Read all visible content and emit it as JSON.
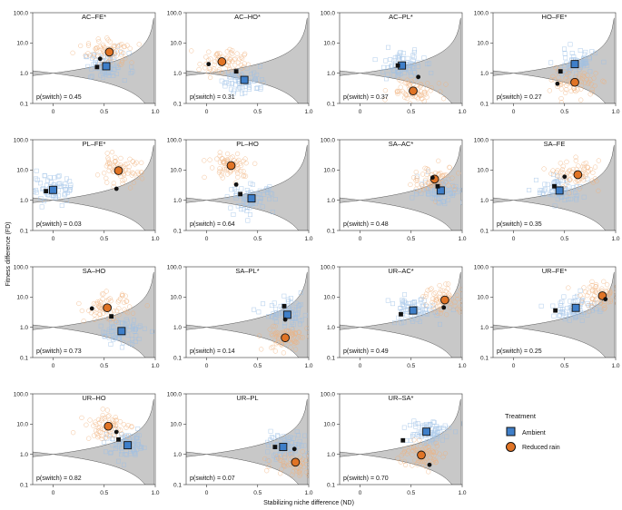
{
  "chart_data": {
    "type": "scatter",
    "xlabel": "Stabilizing niche difference (ND)",
    "ylabel": "Fitness difference (FD)",
    "xlim": [
      -0.2,
      1.0
    ],
    "ylim_log10": [
      -1,
      2
    ],
    "x_ticks": [
      "0",
      "0.5",
      "1.0"
    ],
    "y_ticks": [
      "0.1",
      "1.0",
      "10.0",
      "100.0"
    ],
    "colors": {
      "ambient": "#3f7fc9",
      "reduced": "#e07426",
      "ambient_cloud": "#9bbfe6",
      "reduced_cloud": "#f0b07a",
      "shade": "#c8c8c8"
    },
    "legend": {
      "title": "Treatment",
      "items": [
        "Ambient",
        "Reduced rain"
      ]
    },
    "panels": [
      {
        "title": "AC–FE*",
        "p_switch": "p(switch) = 0.45",
        "ambient": [
          0.52,
          1.7
        ],
        "reduced": [
          0.55,
          5.0
        ],
        "mean": [
          0.46,
          3.0
        ],
        "ambient_ci": [
          0.43,
          1.6
        ]
      },
      {
        "title": "AC–HO*",
        "p_switch": "p(switch) = 0.31",
        "ambient": [
          0.37,
          0.6
        ],
        "reduced": [
          0.15,
          2.4
        ],
        "mean": [
          0.02,
          2.0
        ],
        "ambient_ci": [
          0.29,
          1.15
        ]
      },
      {
        "title": "AC–PL*",
        "p_switch": "p(switch) = 0.37",
        "ambient": [
          0.41,
          1.8
        ],
        "reduced": [
          0.52,
          0.26
        ],
        "mean": [
          0.57,
          0.75
        ],
        "ambient_ci": [
          0.37,
          1.8
        ]
      },
      {
        "title": "HO–FE*",
        "p_switch": "p(switch) = 0.27",
        "ambient": [
          0.6,
          2.0
        ],
        "reduced": [
          0.6,
          0.5
        ],
        "mean": [
          0.43,
          0.45
        ],
        "ambient_ci": [
          0.46,
          1.15
        ]
      },
      {
        "title": "PL–FE*",
        "p_switch": "p(switch) = 0.03",
        "ambient": [
          0.0,
          2.2
        ],
        "reduced": [
          0.64,
          9.5
        ],
        "mean": [
          0.62,
          2.4
        ],
        "ambient_ci": [
          -0.07,
          2.0
        ]
      },
      {
        "title": "PL–HO",
        "p_switch": "p(switch) = 0.64",
        "ambient": [
          0.44,
          1.15
        ],
        "reduced": [
          0.24,
          14.0
        ],
        "mean": [
          0.29,
          3.3
        ],
        "ambient_ci": [
          0.33,
          1.6
        ]
      },
      {
        "title": "SA–AC*",
        "p_switch": "p(switch) = 0.48",
        "ambient": [
          0.79,
          2.1
        ],
        "reduced": [
          0.73,
          5.0
        ],
        "mean": [
          0.71,
          5.6
        ],
        "ambient_ci": [
          0.76,
          2.9
        ]
      },
      {
        "title": "SA–FE",
        "p_switch": "p(switch) = 0.35",
        "ambient": [
          0.45,
          2.1
        ],
        "reduced": [
          0.63,
          7.0
        ],
        "mean": [
          0.5,
          6.0
        ],
        "ambient_ci": [
          0.4,
          2.9
        ]
      },
      {
        "title": "SA–HO",
        "p_switch": "p(switch) = 0.73",
        "ambient": [
          0.67,
          0.75
        ],
        "reduced": [
          0.53,
          4.4
        ],
        "mean": [
          0.38,
          4.2
        ],
        "ambient_ci": [
          0.57,
          2.3
        ]
      },
      {
        "title": "SA–PL*",
        "p_switch": "p(switch) = 0.14",
        "ambient": [
          0.79,
          2.6
        ],
        "reduced": [
          0.77,
          0.45
        ],
        "mean": [
          0.77,
          1.8
        ],
        "ambient_ci": [
          0.76,
          5.0
        ]
      },
      {
        "title": "UR–AC*",
        "p_switch": "p(switch) = 0.49",
        "ambient": [
          0.52,
          3.6
        ],
        "reduced": [
          0.83,
          8.0
        ],
        "mean": [
          0.82,
          4.5
        ],
        "ambient_ci": [
          0.4,
          2.7
        ]
      },
      {
        "title": "UR–FE*",
        "p_switch": "p(switch) = 0.25",
        "ambient": [
          0.61,
          4.4
        ],
        "reduced": [
          0.87,
          11.0
        ],
        "mean": [
          0.9,
          8.5
        ],
        "ambient_ci": [
          0.41,
          3.6
        ]
      },
      {
        "title": "UR–HO",
        "p_switch": "p(switch) = 0.82",
        "ambient": [
          0.73,
          2.0
        ],
        "reduced": [
          0.54,
          8.5
        ],
        "mean": [
          0.62,
          5.5
        ],
        "ambient_ci": [
          0.64,
          3.1
        ]
      },
      {
        "title": "UR–PL",
        "p_switch": "p(switch) = 0.07",
        "ambient": [
          0.75,
          1.75
        ],
        "reduced": [
          0.87,
          0.55
        ],
        "mean": [
          0.86,
          1.5
        ],
        "ambient_ci": [
          0.67,
          1.75
        ]
      },
      {
        "title": "UR–SA*",
        "p_switch": "p(switch) = 0.70",
        "ambient": [
          0.65,
          5.6
        ],
        "reduced": [
          0.6,
          0.95
        ],
        "mean": [
          0.68,
          0.45
        ],
        "ambient_ci": [
          0.42,
          2.9
        ]
      }
    ]
  }
}
